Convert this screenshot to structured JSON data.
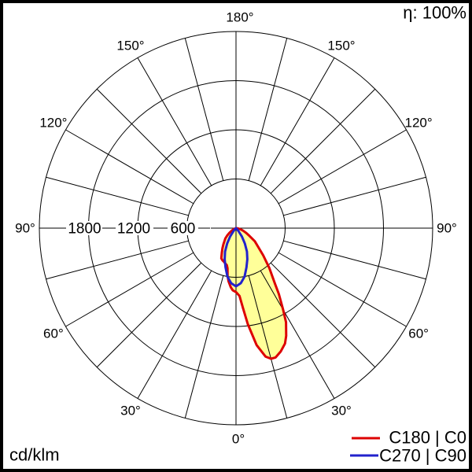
{
  "meta": {
    "efficiency_label": "η: 100%",
    "unit_label": "cd/klm"
  },
  "legend": [
    {
      "label": "C180 | C0",
      "color": "#dd0000"
    },
    {
      "label": "C270 | C90",
      "color": "#2222cc"
    }
  ],
  "chart_data": {
    "type": "polar",
    "subtype": "luminous-intensity-distribution",
    "unit": "cd/klm",
    "efficiency_percent": 100,
    "grid": {
      "spoke_step_deg": 15,
      "grid_on": true
    },
    "radial_axis": {
      "rings": [
        600,
        1200,
        1800,
        2400
      ],
      "ring_labels": [
        "1800",
        "1200",
        "600"
      ],
      "max": 2400
    },
    "angle_axis": {
      "labels": [
        {
          "text": "180°",
          "gamma_signed": 180,
          "dx": 5
        },
        {
          "text": "150°",
          "gamma_signed": -150,
          "dx": 0
        },
        {
          "text": "150°",
          "gamma_signed": 150,
          "dx": 0
        },
        {
          "text": "120°",
          "gamma_signed": -120,
          "dx": 0
        },
        {
          "text": "120°",
          "gamma_signed": 120,
          "dx": 0
        },
        {
          "text": "90°",
          "gamma_signed": -90,
          "dx": 0
        },
        {
          "text": "90°",
          "gamma_signed": 90,
          "dx": 0
        },
        {
          "text": "60°",
          "gamma_signed": -60,
          "dx": 0
        },
        {
          "text": "60°",
          "gamma_signed": 60,
          "dx": 0
        },
        {
          "text": "30°",
          "gamma_signed": -30,
          "dx": 0
        },
        {
          "text": "30°",
          "gamma_signed": 30,
          "dx": 0
        },
        {
          "text": "0°",
          "gamma_signed": 0,
          "dx": 3
        }
      ]
    },
    "series": [
      {
        "name": "C180 | C0",
        "color": "#dd0000",
        "fill": "#ffff99",
        "left_halfplane": "C180",
        "right_halfplane": "C0",
        "max_value": 1650,
        "max_value_gamma_deg": 15,
        "left_points": [
          [
            0,
            780
          ],
          [
            3,
            760
          ],
          [
            5,
            725
          ],
          [
            8,
            655
          ],
          [
            10,
            590
          ],
          [
            12,
            500
          ],
          [
            14,
            465
          ],
          [
            17,
            450
          ],
          [
            20,
            435
          ],
          [
            23,
            425
          ],
          [
            26,
            410
          ],
          [
            30,
            345
          ],
          [
            34,
            295
          ],
          [
            38,
            250
          ],
          [
            42,
            210
          ],
          [
            46,
            180
          ],
          [
            50,
            140
          ],
          [
            55,
            95
          ],
          [
            60,
            55
          ],
          [
            65,
            25
          ],
          [
            70,
            8
          ],
          [
            73,
            0
          ]
        ],
        "right_points": [
          [
            0,
            780
          ],
          [
            3,
            830
          ],
          [
            5,
            980
          ],
          [
            7,
            1180
          ],
          [
            10,
            1450
          ],
          [
            13,
            1610
          ],
          [
            15,
            1650
          ],
          [
            17,
            1650
          ],
          [
            20,
            1600
          ],
          [
            23,
            1530
          ],
          [
            25,
            1450
          ],
          [
            28,
            1300
          ],
          [
            30,
            1150
          ],
          [
            33,
            960
          ],
          [
            35,
            830
          ],
          [
            40,
            630
          ],
          [
            45,
            470
          ],
          [
            50,
            350
          ],
          [
            55,
            280
          ],
          [
            60,
            190
          ],
          [
            65,
            135
          ],
          [
            70,
            95
          ],
          [
            75,
            60
          ],
          [
            80,
            30
          ],
          [
            85,
            10
          ],
          [
            90,
            0
          ]
        ]
      },
      {
        "name": "C270 | C90",
        "color": "#2222cc",
        "fill": "#ffff99",
        "left_halfplane": "C270",
        "right_halfplane": "C90",
        "max_value": 710,
        "max_value_gamma_deg": 0,
        "left_points": [
          [
            0,
            710
          ],
          [
            5,
            675
          ],
          [
            10,
            600
          ],
          [
            15,
            495
          ],
          [
            20,
            405
          ],
          [
            25,
            315
          ],
          [
            30,
            215
          ],
          [
            35,
            125
          ],
          [
            40,
            50
          ],
          [
            44,
            15
          ],
          [
            48,
            0
          ]
        ],
        "right_points": [
          [
            0,
            710
          ],
          [
            5,
            675
          ],
          [
            10,
            600
          ],
          [
            15,
            495
          ],
          [
            20,
            405
          ],
          [
            25,
            315
          ],
          [
            30,
            215
          ],
          [
            35,
            125
          ],
          [
            40,
            50
          ],
          [
            44,
            15
          ],
          [
            48,
            0
          ]
        ]
      }
    ]
  }
}
